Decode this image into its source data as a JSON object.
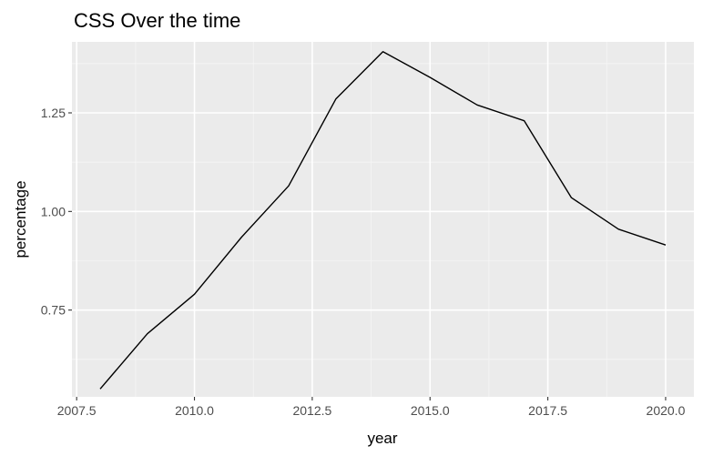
{
  "chart_data": {
    "type": "line",
    "title": "CSS Over the time",
    "xlabel": "year",
    "ylabel": "percentage",
    "xlim": [
      2007.4,
      2020.6
    ],
    "ylim": [
      0.53,
      1.43
    ],
    "x_ticks": [
      2007.5,
      2010.0,
      2012.5,
      2015.0,
      2017.5,
      2020.0
    ],
    "x_tick_labels": [
      "2007.5",
      "2010.0",
      "2012.5",
      "2015.0",
      "2017.5",
      "2020.0"
    ],
    "y_ticks": [
      0.75,
      1.0,
      1.25
    ],
    "y_tick_labels": [
      "0.75",
      "1.00",
      "1.25"
    ],
    "grid": true,
    "series": [
      {
        "name": "CSS",
        "color": "#000000",
        "x": [
          2008,
          2009,
          2010,
          2011,
          2012,
          2013,
          2014,
          2015,
          2016,
          2017,
          2018,
          2019,
          2020
        ],
        "values": [
          0.55,
          0.69,
          0.79,
          0.935,
          1.065,
          1.285,
          1.405,
          1.34,
          1.27,
          1.23,
          1.035,
          0.955,
          0.915
        ]
      }
    ]
  },
  "colors": {
    "panel_background": "#ebebeb",
    "grid_major": "#ffffff",
    "grid_minor": "#f5f5f5",
    "line": "#000000",
    "tick_label": "#4d4d4d"
  }
}
